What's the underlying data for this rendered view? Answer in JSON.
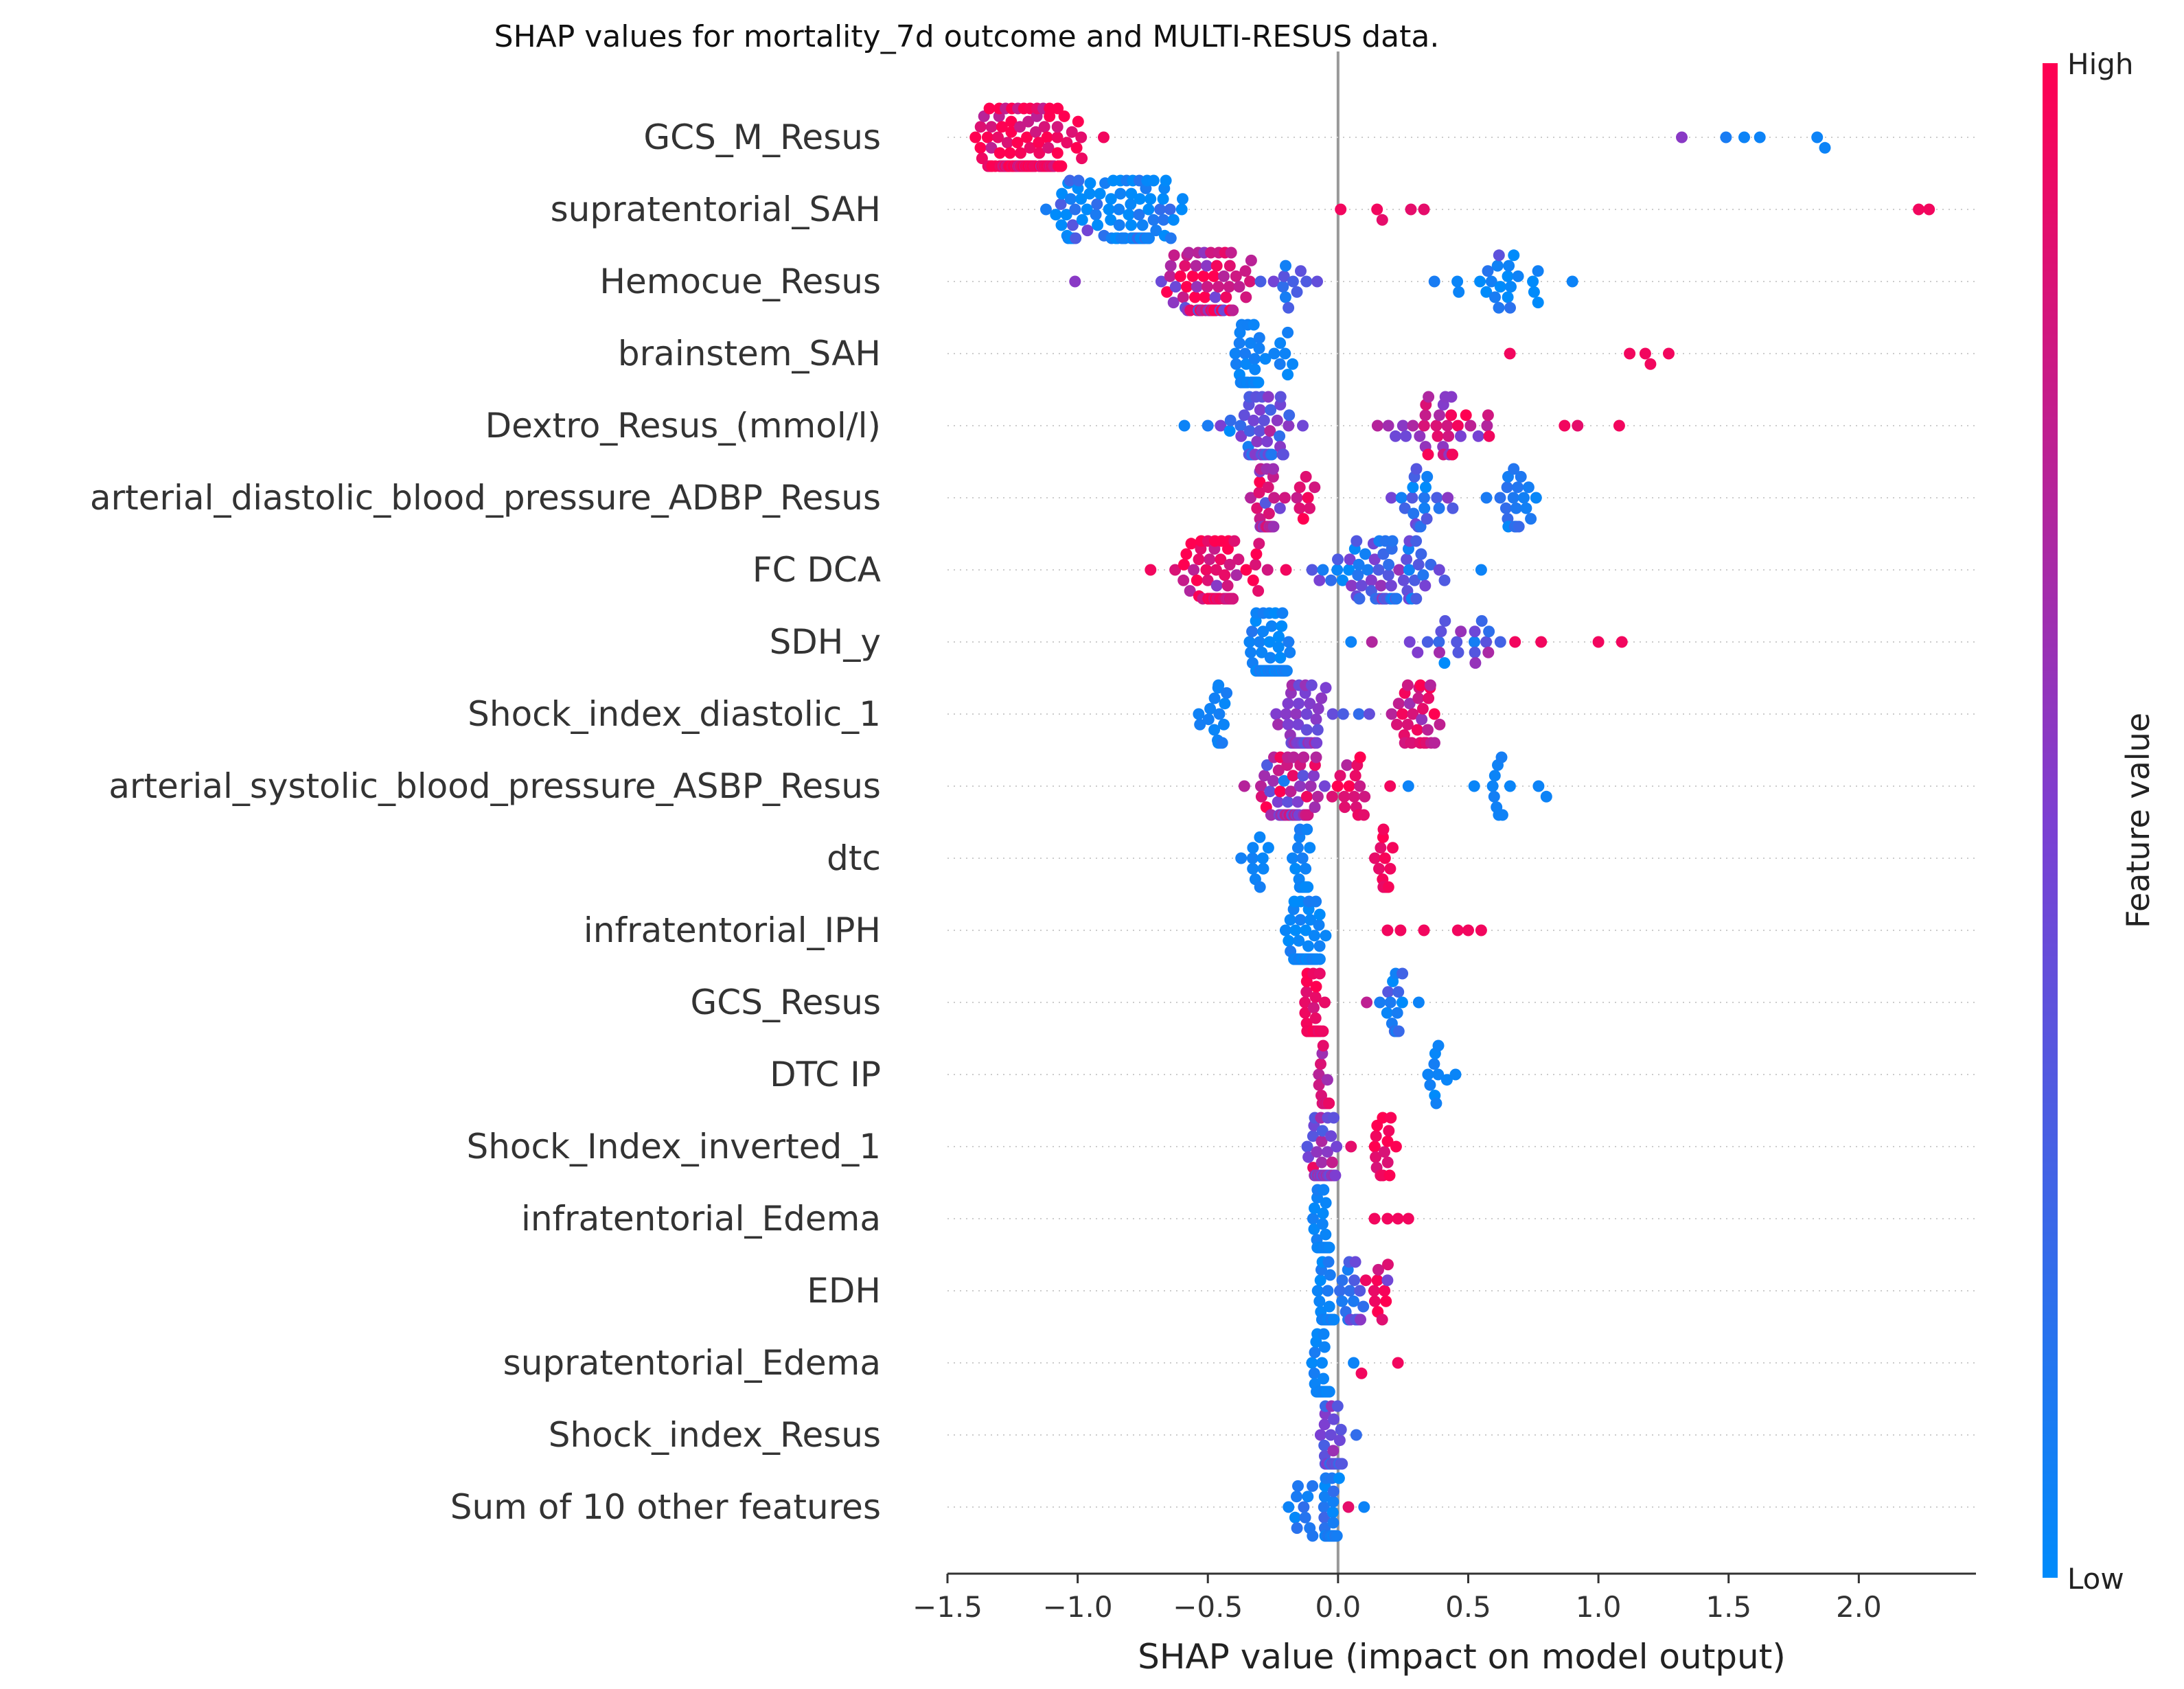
{
  "chart_data": {
    "type": "scatter",
    "title": "SHAP values for mortality_7d outcome and MULTI-RESUS data.",
    "xlabel": "SHAP value (impact on model output)",
    "ylabel": "",
    "xlim": [
      -1.5,
      2.45
    ],
    "xticks": [
      -1.5,
      -1.0,
      -0.5,
      0.0,
      0.5,
      1.0,
      1.5,
      2.0
    ],
    "xtick_labels": [
      "−1.5",
      "−1.0",
      "−0.5",
      "0.0",
      "0.5",
      "1.0",
      "1.5",
      "2.0"
    ],
    "grid": false,
    "colorbar": {
      "title": "Feature value",
      "high_label": "High",
      "low_label": "Low",
      "low_color": "#008bfb",
      "mid_color": "#7c3fd2",
      "high_color": "#ff0051"
    },
    "features": [
      {
        "name": "GCS_M_Resus",
        "clusters": [
          [
            -1.2,
            0.14,
            150,
            0.95,
            0.3
          ],
          [
            -0.98,
            0.04,
            4,
            0.95,
            0.3
          ]
        ],
        "points": [
          [
            1.32,
            0.55
          ],
          [
            1.49,
            0.1
          ],
          [
            1.56,
            0.05
          ],
          [
            1.62,
            0.05
          ],
          [
            1.84,
            0.05
          ],
          [
            1.87,
            0.05
          ],
          [
            -0.9,
            0.95
          ]
        ]
      },
      {
        "name": "supratentorial_SAH",
        "clusters": [
          [
            -0.78,
            0.11,
            85,
            0.05,
            0.2
          ],
          [
            -1.0,
            0.07,
            25,
            0.05,
            0.35
          ]
        ],
        "points": [
          [
            0.01,
            0.95
          ],
          [
            0.15,
            0.95
          ],
          [
            0.17,
            0.9
          ],
          [
            0.28,
            0.9
          ],
          [
            0.33,
            0.9
          ],
          [
            2.23,
            0.95
          ],
          [
            2.27,
            0.95
          ]
        ]
      },
      {
        "name": "Hemocue_Resus",
        "clusters": [
          [
            -0.5,
            0.15,
            80,
            0.8,
            0.4
          ],
          [
            -0.18,
            0.08,
            10,
            0.3,
            0.4
          ],
          [
            0.66,
            0.16,
            22,
            0.05,
            0.2
          ]
        ],
        "points": [
          [
            -1.01,
            0.55
          ],
          [
            -0.08,
            0.4
          ],
          [
            0.37,
            0.1
          ],
          [
            0.9,
            0.05
          ]
        ]
      },
      {
        "name": "brainstem_SAH",
        "clusters": [
          [
            -0.35,
            0.05,
            40,
            0.05,
            0.05
          ],
          [
            -0.2,
            0.05,
            8,
            0.05,
            0.05
          ]
        ],
        "points": [
          [
            0.66,
            0.95
          ],
          [
            1.12,
            0.95
          ],
          [
            1.18,
            0.95
          ],
          [
            1.2,
            0.95
          ],
          [
            1.27,
            0.95
          ]
        ]
      },
      {
        "name": "Dextro_Resus_(mmol/l)",
        "clusters": [
          [
            -0.28,
            0.1,
            50,
            0.35,
            0.3
          ],
          [
            0.42,
            0.2,
            35,
            0.75,
            0.3
          ]
        ],
        "points": [
          [
            -0.59,
            0.05
          ],
          [
            -0.5,
            0.1
          ],
          [
            0.87,
            0.95
          ],
          [
            0.92,
            0.9
          ],
          [
            1.08,
            0.95
          ]
        ]
      },
      {
        "name": "arterial_diastolic_blood_pressure_ADBP_Resus",
        "clusters": [
          [
            -0.28,
            0.04,
            40,
            0.7,
            0.3
          ],
          [
            -0.13,
            0.04,
            8,
            0.9,
            0.15
          ],
          [
            0.3,
            0.1,
            20,
            0.25,
            0.3
          ],
          [
            0.67,
            0.08,
            20,
            0.1,
            0.15
          ]
        ],
        "points": []
      },
      {
        "name": "FC  DCA",
        "clusters": [
          [
            -0.45,
            0.14,
            70,
            0.9,
            0.25
          ],
          [
            0.18,
            0.16,
            70,
            0.3,
            0.35
          ]
        ],
        "points": [
          [
            -0.72,
            0.95
          ],
          [
            -0.2,
            0.95
          ],
          [
            0.55,
            0.05
          ]
        ]
      },
      {
        "name": "SDH_y",
        "clusters": [
          [
            -0.27,
            0.06,
            80,
            0.05,
            0.1
          ],
          [
            0.45,
            0.15,
            20,
            0.4,
            0.4
          ]
        ],
        "points": [
          [
            0.05,
            0.05
          ],
          [
            0.13,
            0.7
          ],
          [
            0.68,
            0.95
          ],
          [
            0.78,
            0.95
          ],
          [
            1.0,
            0.95
          ],
          [
            1.09,
            0.95
          ]
        ]
      },
      {
        "name": "Shock_index_diastolic_1",
        "clusters": [
          [
            -0.47,
            0.05,
            18,
            0.05,
            0.05
          ],
          [
            -0.13,
            0.08,
            55,
            0.5,
            0.2
          ],
          [
            0.3,
            0.07,
            30,
            0.85,
            0.2
          ]
        ],
        "points": [
          [
            0.02,
            0.3
          ],
          [
            0.08,
            0.2
          ],
          [
            0.12,
            0.4
          ]
        ]
      },
      {
        "name": "arterial_systolic_blood_pressure_ASBP_Resus",
        "clusters": [
          [
            -0.18,
            0.1,
            80,
            0.65,
            0.35
          ],
          [
            0.05,
            0.05,
            15,
            0.9,
            0.15
          ],
          [
            0.63,
            0.08,
            10,
            0.05,
            0.05
          ]
        ],
        "points": [
          [
            0.2,
            0.95
          ],
          [
            0.27,
            0.05
          ],
          [
            0.77,
            0.05
          ],
          [
            0.8,
            0.05
          ]
        ]
      },
      {
        "name": "dtc",
        "clusters": [
          [
            -0.13,
            0.02,
            40,
            0.05,
            0.05
          ],
          [
            -0.33,
            0.04,
            10,
            0.05,
            0.05
          ],
          [
            0.18,
            0.03,
            15,
            0.95,
            0.05
          ]
        ],
        "points": []
      },
      {
        "name": "infratentorial_IPH",
        "clusters": [
          [
            -0.13,
            0.05,
            90,
            0.05,
            0.1
          ]
        ],
        "points": [
          [
            0.19,
            0.95
          ],
          [
            0.24,
            0.95
          ],
          [
            0.33,
            0.95
          ],
          [
            0.46,
            0.95
          ],
          [
            0.5,
            0.95
          ],
          [
            0.55,
            0.95
          ]
        ]
      },
      {
        "name": "GCS_Resus",
        "clusters": [
          [
            -0.1,
            0.03,
            60,
            0.95,
            0.1
          ],
          [
            0.22,
            0.04,
            15,
            0.1,
            0.2
          ]
        ],
        "points": [
          [
            0.11,
            0.75
          ],
          [
            0.31,
            0.05
          ]
        ]
      },
      {
        "name": "DTC IP",
        "clusters": [
          [
            -0.05,
            0.015,
            40,
            0.8,
            0.25
          ],
          [
            0.38,
            0.04,
            10,
            0.05,
            0.05
          ]
        ],
        "points": []
      },
      {
        "name": "Shock_Index_inverted_1",
        "clusters": [
          [
            -0.06,
            0.04,
            60,
            0.5,
            0.35
          ],
          [
            0.17,
            0.04,
            15,
            0.95,
            0.1
          ]
        ],
        "points": [
          [
            0.05,
            0.9
          ]
        ]
      },
      {
        "name": "infratentorial_Edema",
        "clusters": [
          [
            -0.06,
            0.02,
            80,
            0.05,
            0.05
          ]
        ],
        "points": [
          [
            0.14,
            0.95
          ],
          [
            0.19,
            0.95
          ],
          [
            0.23,
            0.95
          ],
          [
            0.27,
            0.95
          ]
        ]
      },
      {
        "name": "EDH",
        "clusters": [
          [
            -0.05,
            0.02,
            60,
            0.05,
            0.1
          ],
          [
            0.05,
            0.03,
            20,
            0.25,
            0.3
          ],
          [
            0.15,
            0.04,
            10,
            0.9,
            0.15
          ]
        ],
        "points": [
          [
            0.19,
            0.45
          ]
        ]
      },
      {
        "name": "supratentorial_Edema",
        "clusters": [
          [
            -0.06,
            0.02,
            70,
            0.05,
            0.05
          ]
        ],
        "points": [
          [
            0.06,
            0.05
          ],
          [
            0.09,
            0.95
          ],
          [
            0.23,
            0.95
          ]
        ]
      },
      {
        "name": "Shock_index_Resus",
        "clusters": [
          [
            -0.02,
            0.03,
            70,
            0.4,
            0.35
          ]
        ],
        "points": [
          [
            0.07,
            0.2
          ]
        ]
      },
      {
        "name": "Sum of 10 other features",
        "clusters": [
          [
            -0.03,
            0.02,
            80,
            0.1,
            0.15
          ],
          [
            -0.12,
            0.04,
            10,
            0.1,
            0.1
          ]
        ],
        "points": [
          [
            -0.19,
            0.05
          ],
          [
            0.1,
            0.05
          ],
          [
            0.04,
            0.9
          ]
        ]
      }
    ]
  }
}
